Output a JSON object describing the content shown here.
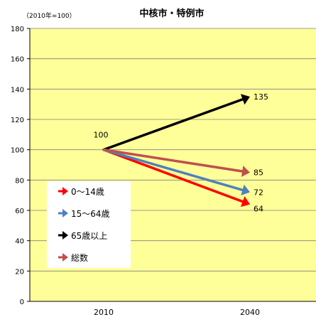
{
  "chart_data": {
    "type": "line",
    "title": "中核市・特例市",
    "unit_note": "（2010年=100）",
    "categories": [
      "2010",
      "2040"
    ],
    "ylim": [
      0,
      180
    ],
    "yticks": [
      "0",
      "20",
      "40",
      "60",
      "80",
      "100",
      "120",
      "140",
      "160",
      "180"
    ],
    "grid": true,
    "legend_position": "bottom-left",
    "series": [
      {
        "name": "0～14歳",
        "values": [
          100,
          64
        ],
        "color": "#ff0000"
      },
      {
        "name": "15～64歳",
        "values": [
          100,
          72
        ],
        "color": "#4f81bd"
      },
      {
        "name": "65歳以上",
        "values": [
          100,
          135
        ],
        "color": "#000000"
      },
      {
        "name": "総数",
        "values": [
          100,
          85
        ],
        "color": "#c0504d"
      }
    ],
    "data_labels": [
      {
        "text": "100"
      },
      {
        "text": "135"
      },
      {
        "text": "85"
      },
      {
        "text": "72"
      },
      {
        "text": "64"
      }
    ],
    "plot_background": "#ffff99"
  }
}
